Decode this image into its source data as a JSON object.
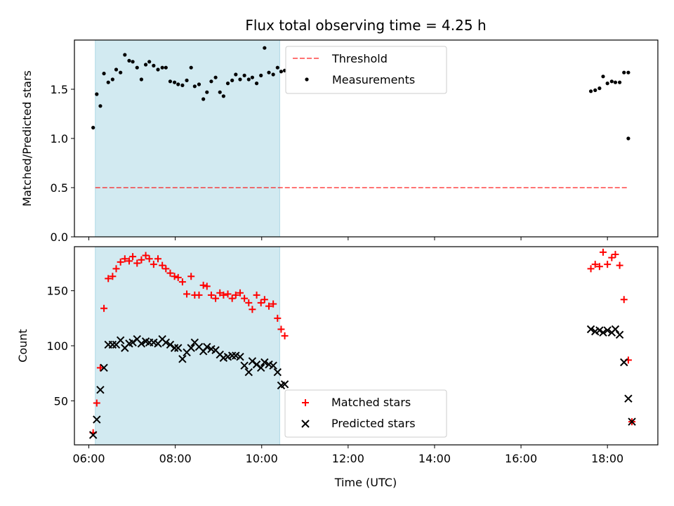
{
  "figure": {
    "title": "Flux total observing time = 4.25 h",
    "xlabel": "Time (UTC)",
    "x_tick_labels": [
      "06:00",
      "08:00",
      "10:00",
      "12:00",
      "14:00",
      "16:00",
      "18:00"
    ]
  },
  "chart_data": [
    {
      "type": "scatter",
      "ylabel": "Matched/Predicted stars",
      "xlim": [
        "05:40",
        "19:10"
      ],
      "ylim": [
        0,
        2.0
      ],
      "yticks": [
        "0.0",
        "0.5",
        "1.0",
        "1.5"
      ],
      "x_tick_labels_shown": false,
      "shaded_interval": {
        "x": [
          "06:09",
          "10:25"
        ],
        "color": "#add8e6"
      },
      "threshold": {
        "name": "Threshold",
        "y": 0.5,
        "x": [
          "06:09",
          "18:27"
        ],
        "color": "#ff0000",
        "style": "dashed"
      },
      "legend": {
        "placement": "upper center",
        "entries": [
          "Threshold",
          "Measurements"
        ]
      },
      "series": [
        {
          "name": "Measurements",
          "marker": "dot",
          "color": "#000000",
          "x": [
            "06:06",
            "06:11",
            "06:16",
            "06:21",
            "06:27",
            "06:33",
            "06:38",
            "06:44",
            "06:50",
            "06:56",
            "07:01",
            "07:07",
            "07:13",
            "07:19",
            "07:24",
            "07:30",
            "07:36",
            "07:42",
            "07:47",
            "07:53",
            "07:59",
            "08:04",
            "08:10",
            "08:16",
            "08:22",
            "08:27",
            "08:33",
            "08:39",
            "08:44",
            "08:50",
            "08:56",
            "09:02",
            "09:07",
            "09:13",
            "09:19",
            "09:24",
            "09:30",
            "09:36",
            "09:42",
            "09:47",
            "09:53",
            "09:59",
            "10:04",
            "10:10",
            "10:16",
            "10:22",
            "10:27",
            "17:37",
            "17:43",
            "17:49",
            "17:54",
            "18:00",
            "18:06",
            "18:11",
            "18:17",
            "18:23",
            "18:29"
          ],
          "y": [
            1.11,
            1.45,
            1.33,
            1.66,
            1.57,
            1.6,
            1.7,
            1.67,
            1.85,
            1.79,
            1.78,
            1.72,
            1.6,
            1.75,
            1.78,
            1.74,
            1.7,
            1.72,
            1.72,
            1.58,
            1.57,
            1.55,
            1.54,
            1.59,
            1.72,
            1.53,
            1.55,
            1.4,
            1.47,
            1.58,
            1.62,
            1.47,
            1.43,
            1.56,
            1.59,
            1.65,
            1.6,
            1.64,
            1.6,
            1.62,
            1.56,
            1.64,
            1.92,
            1.67,
            1.65,
            1.72,
            1.68,
            1.48,
            1.49,
            1.51,
            1.63,
            1.56,
            1.58,
            1.57,
            1.57,
            1.67,
            1.67
          ]
        },
        {
          "name": "",
          "marker": "dot",
          "color": "#000000",
          "x": [
            "10:32",
            "18:29"
          ],
          "y": [
            1.69,
            1.0
          ]
        }
      ]
    },
    {
      "type": "scatter",
      "ylabel": "Count",
      "xlim": [
        "05:40",
        "19:10"
      ],
      "ylim": [
        10,
        190
      ],
      "yticks": [
        "50",
        "100",
        "150"
      ],
      "shaded_interval": {
        "x": [
          "06:09",
          "10:25"
        ],
        "color": "#add8e6"
      },
      "legend": {
        "placement": "lower center",
        "entries": [
          "Matched stars",
          "Predicted stars"
        ]
      },
      "series": [
        {
          "name": "Matched stars",
          "marker": "plus",
          "color": "#ff0000",
          "x": [
            "06:06",
            "06:11",
            "06:16",
            "06:21",
            "06:27",
            "06:33",
            "06:38",
            "06:44",
            "06:50",
            "06:56",
            "07:01",
            "07:07",
            "07:13",
            "07:19",
            "07:24",
            "07:30",
            "07:36",
            "07:42",
            "07:47",
            "07:53",
            "07:59",
            "08:04",
            "08:10",
            "08:16",
            "08:22",
            "08:27",
            "08:33",
            "08:39",
            "08:44",
            "08:50",
            "08:56",
            "09:02",
            "09:07",
            "09:13",
            "09:19",
            "09:24",
            "09:30",
            "09:36",
            "09:42",
            "09:47",
            "09:53",
            "09:59",
            "10:04",
            "10:10",
            "10:16",
            "10:22",
            "10:27",
            "10:32",
            "17:37",
            "17:43",
            "17:49",
            "17:54",
            "18:00",
            "18:06",
            "18:11",
            "18:17",
            "18:23",
            "18:29"
          ],
          "y": [
            21,
            48,
            80,
            134,
            161,
            163,
            170,
            176,
            179,
            177,
            181,
            175,
            178,
            182,
            179,
            174,
            179,
            173,
            170,
            166,
            163,
            162,
            158,
            147,
            163,
            146,
            146,
            155,
            154,
            146,
            143,
            148,
            146,
            147,
            143,
            146,
            148,
            143,
            139,
            133,
            146,
            139,
            142,
            136,
            138,
            125,
            115,
            109,
            170,
            174,
            172,
            185,
            174,
            180,
            183,
            173,
            142,
            87
          ]
        },
        {
          "name": "Predicted stars",
          "marker": "x",
          "color": "#000000",
          "x": [
            "06:06",
            "06:11",
            "06:16",
            "06:21",
            "06:27",
            "06:33",
            "06:38",
            "06:44",
            "06:50",
            "06:56",
            "07:01",
            "07:07",
            "07:13",
            "07:19",
            "07:24",
            "07:30",
            "07:36",
            "07:42",
            "07:47",
            "07:53",
            "07:59",
            "08:04",
            "08:10",
            "08:16",
            "08:22",
            "08:27",
            "08:33",
            "08:39",
            "08:44",
            "08:50",
            "08:56",
            "09:02",
            "09:07",
            "09:13",
            "09:19",
            "09:24",
            "09:30",
            "09:36",
            "09:42",
            "09:47",
            "09:53",
            "09:59",
            "10:04",
            "10:10",
            "10:16",
            "10:22",
            "10:27",
            "10:32",
            "17:37",
            "17:43",
            "17:49",
            "17:54",
            "18:00",
            "18:06",
            "18:11",
            "18:17",
            "18:23",
            "18:29"
          ],
          "y": [
            19,
            33,
            60,
            80,
            101,
            101,
            101,
            105,
            98,
            102,
            103,
            106,
            102,
            104,
            103,
            103,
            102,
            106,
            103,
            101,
            98,
            98,
            88,
            94,
            98,
            103,
            99,
            95,
            99,
            97,
            96,
            92,
            89,
            90,
            91,
            91,
            90,
            82,
            76,
            86,
            83,
            80,
            85,
            83,
            82,
            76,
            64,
            65,
            115,
            113,
            114,
            112,
            114,
            112,
            115,
            110,
            85,
            52
          ]
        },
        {
          "name": "",
          "marker": "plus",
          "color": "#ff0000",
          "x": [
            "18:34"
          ],
          "y": [
            31
          ]
        },
        {
          "name": "",
          "marker": "x",
          "color": "#000000",
          "x": [
            "18:34"
          ],
          "y": [
            31
          ]
        }
      ]
    }
  ]
}
